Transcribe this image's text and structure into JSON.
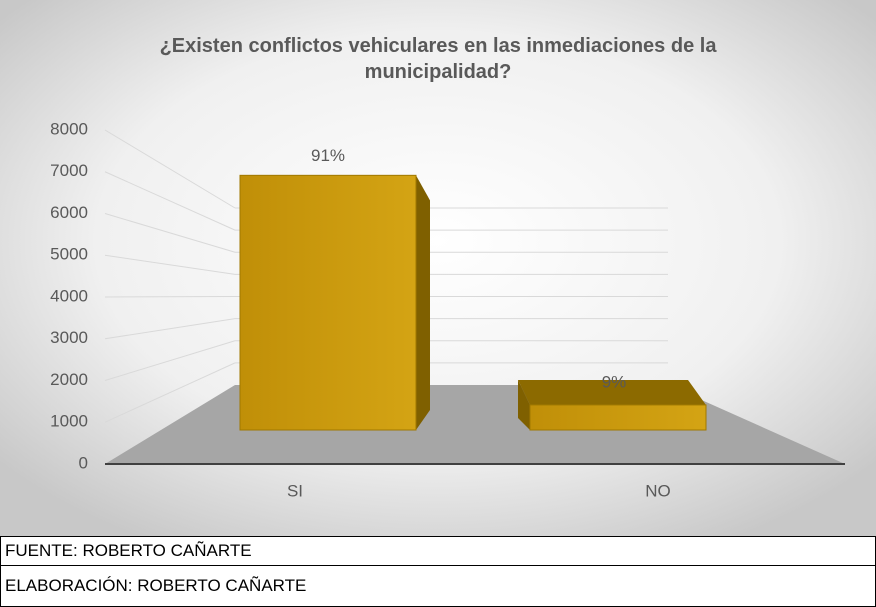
{
  "chart_data": {
    "type": "bar3d",
    "title": "¿Existen conflictos vehiculares en las inmediaciones de la municipalidad?",
    "categories": [
      "SI",
      "NO"
    ],
    "values": [
      6100,
      600
    ],
    "value_labels": [
      "91%",
      "9%"
    ],
    "color": "#c9980c",
    "ylim": [
      0,
      8000
    ],
    "yticks": [
      0,
      1000,
      2000,
      3000,
      4000,
      5000,
      6000,
      7000,
      8000
    ],
    "grid": true
  },
  "footer": {
    "rows": [
      "FUENTE: ROBERTO CAÑARTE",
      "ELABORACIÓN: ROBERTO CAÑARTE"
    ]
  }
}
